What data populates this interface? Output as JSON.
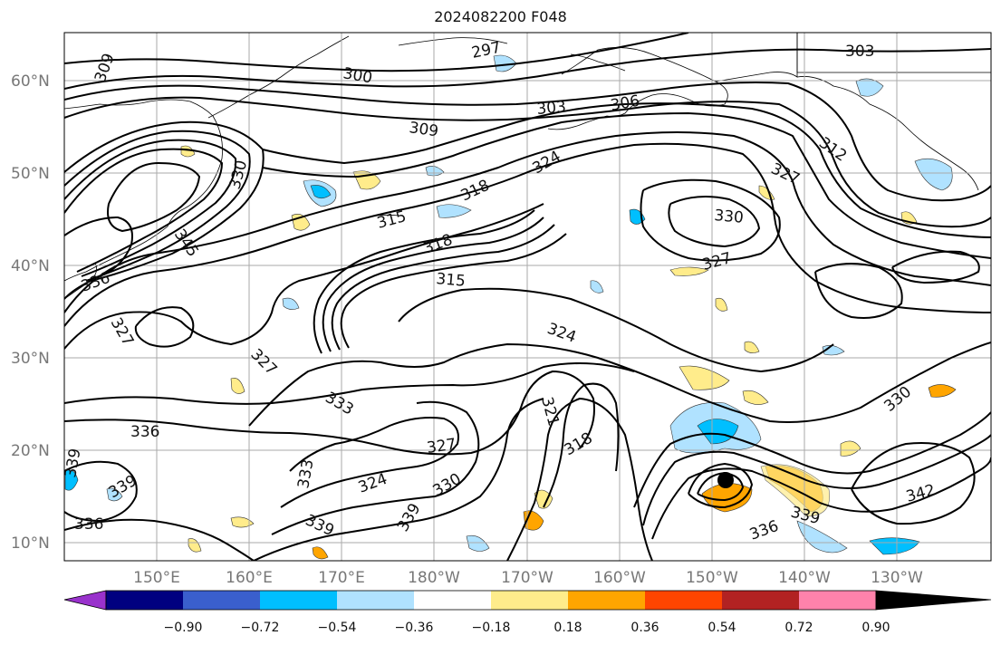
{
  "title": "2024082200 F048",
  "lat_labels": [
    "60°N",
    "50°N",
    "40°N",
    "30°N",
    "20°N",
    "10°N"
  ],
  "lon_labels": [
    "150°E",
    "160°E",
    "170°E",
    "180°W",
    "170°W",
    "160°W",
    "150°W",
    "140°W",
    "130°W"
  ],
  "contour_labels": [
    "303",
    "300",
    "297",
    "303",
    "309",
    "306",
    "309",
    "312",
    "324",
    "327",
    "318",
    "330",
    "315",
    "318",
    "327",
    "336",
    "327",
    "315",
    "324",
    "327",
    "333",
    "321",
    "318",
    "336",
    "327",
    "324",
    "330",
    "339",
    "333",
    "339",
    "336",
    "342",
    "339",
    "336",
    "330",
    "330",
    "339",
    "339",
    "345"
  ],
  "colorbar": {
    "tick_labels": [
      "−0.90",
      "−0.72",
      "−0.54",
      "−0.36",
      "−0.18",
      "0.18",
      "0.36",
      "0.54",
      "0.72",
      "0.90"
    ],
    "colors": [
      "#9932cc",
      "#000080",
      "#3a5fcd",
      "#00bfff",
      "#b0e2ff",
      "#ffffff",
      "#ffec8b",
      "#ffa500",
      "#ff4500",
      "#b22222",
      "#ff82ab"
    ]
  }
}
